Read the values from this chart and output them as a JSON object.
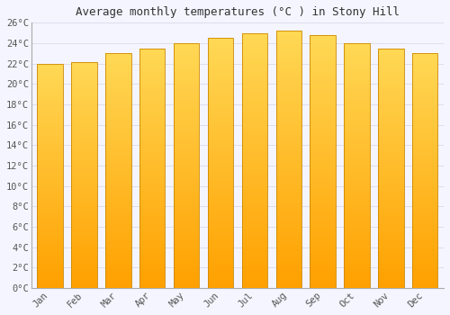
{
  "title": "Average monthly temperatures (°C ) in Stony Hill",
  "months": [
    "Jan",
    "Feb",
    "Mar",
    "Apr",
    "May",
    "Jun",
    "Jul",
    "Aug",
    "Sep",
    "Oct",
    "Nov",
    "Dec"
  ],
  "values": [
    22.0,
    22.1,
    23.0,
    23.5,
    24.0,
    24.5,
    25.0,
    25.2,
    24.8,
    24.0,
    23.5,
    23.0
  ],
  "ylim": [
    0,
    26
  ],
  "yticks": [
    0,
    2,
    4,
    6,
    8,
    10,
    12,
    14,
    16,
    18,
    20,
    22,
    24,
    26
  ],
  "bar_color_bottom": "#FFA500",
  "bar_color_top": "#FFD060",
  "bar_edge_color": "#CC8800",
  "background_color": "#F5F5FF",
  "grid_color": "#DDDDEE",
  "title_fontsize": 9,
  "tick_fontsize": 7.5,
  "title_font": "monospace",
  "tick_font": "monospace"
}
